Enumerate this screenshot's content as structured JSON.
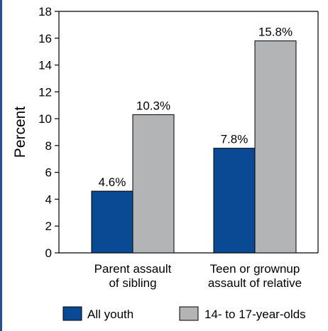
{
  "chart_data": {
    "type": "bar",
    "title": "",
    "ylabel": "Percent",
    "xlabel": "",
    "ylim": [
      0,
      18
    ],
    "yticks": [
      0,
      2,
      4,
      6,
      8,
      10,
      12,
      14,
      16,
      18
    ],
    "grid": false,
    "legend_position": "bottom",
    "categories": [
      [
        "Parent assault",
        "of sibling"
      ],
      [
        "Teen or grownup",
        "assault of relative"
      ]
    ],
    "series": [
      {
        "name": "All youth",
        "color": "#0a4a94",
        "values": [
          4.6,
          7.8
        ],
        "labels": [
          "4.6%",
          "7.8%"
        ]
      },
      {
        "name": "14- to 17-year-olds",
        "color": "#b3b4b6",
        "values": [
          10.3,
          15.8
        ],
        "labels": [
          "10.3%",
          "15.8%"
        ]
      }
    ]
  }
}
